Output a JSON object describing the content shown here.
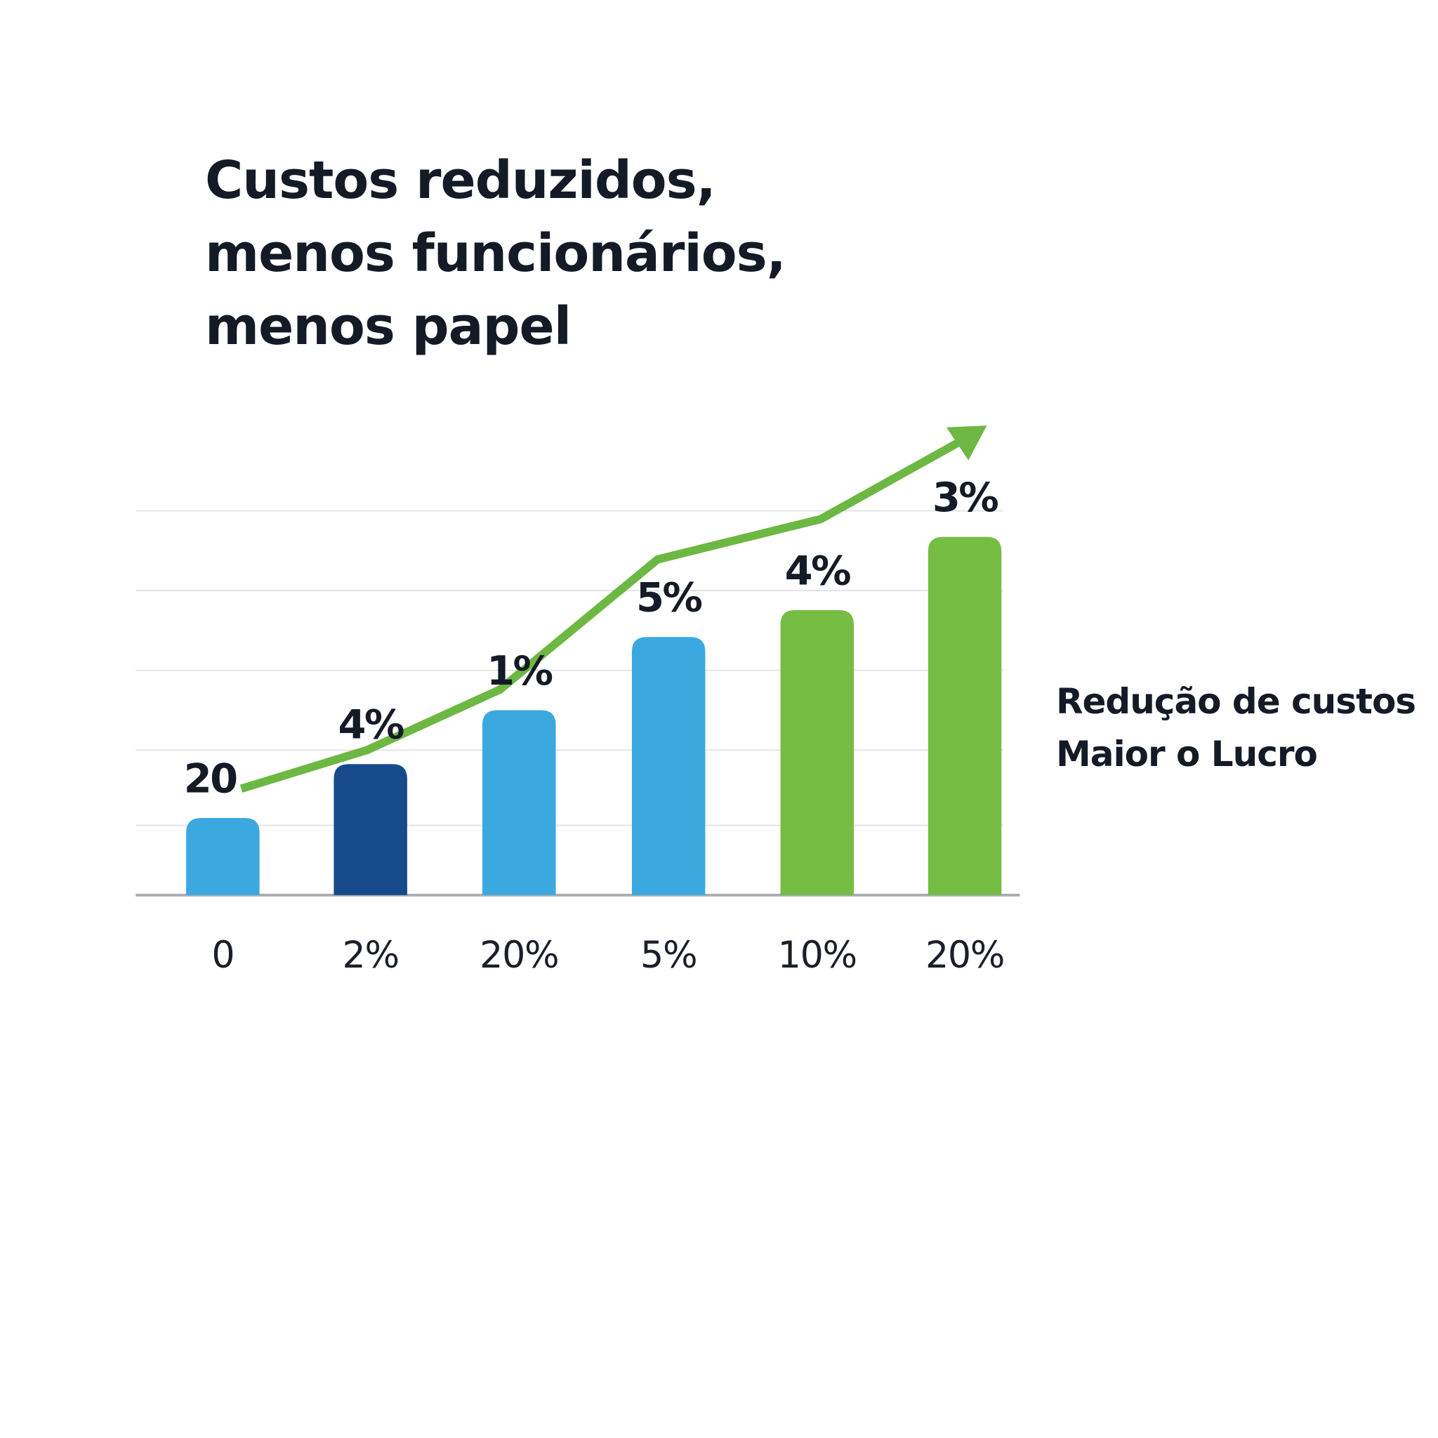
{
  "chart_data": {
    "type": "bar",
    "title": [
      "Custos reduzidos,",
      "menos funcionários,",
      "menos papel"
    ],
    "categories": [
      "0",
      "2%",
      "20%",
      "5%",
      "10%",
      "20%"
    ],
    "values": [
      1.0,
      1.7,
      2.4,
      3.35,
      3.7,
      4.65
    ],
    "data_labels": [
      "20",
      "4%",
      "1%",
      "5%",
      "4%",
      "3%"
    ],
    "bar_colors": [
      "#3BA9E0",
      "#174A8A",
      "#3BA9E0",
      "#3BA9E0",
      "#76BE43",
      "#76BE43"
    ],
    "trend_line": {
      "color": "#6DB843",
      "values": [
        1.35,
        1.85,
        2.65,
        4.3,
        4.8,
        6.0
      ],
      "arrow": true
    },
    "ylim": [
      0,
      5
    ],
    "grid": true,
    "xlabel": "",
    "ylabel": "",
    "annotation": [
      "Redução de custos",
      "Maior o Lucro"
    ]
  }
}
